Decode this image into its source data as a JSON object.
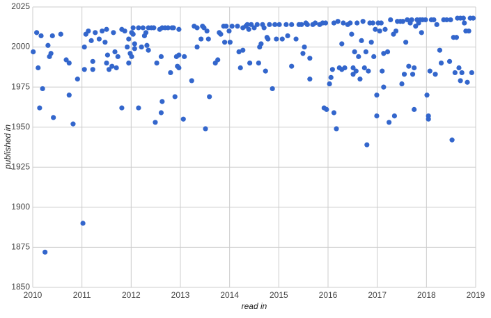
{
  "chart_data": {
    "type": "scatter",
    "x_label": "read in",
    "y_label": "published in",
    "color": "#3366cc",
    "grid": true,
    "xlim": [
      2010,
      2019
    ],
    "xticks": [
      2010,
      2011,
      2012,
      2013,
      2014,
      2015,
      2016,
      2017,
      2018,
      2019
    ],
    "ylim": [
      1850,
      2025
    ],
    "yticks": [
      1850,
      1875,
      1900,
      1925,
      1950,
      1975,
      2000,
      2025
    ],
    "x": [
      2010.01,
      2010.08,
      2010.11,
      2010.14,
      2010.17,
      2010.2,
      2010.25,
      2010.31,
      2010.34,
      2010.37,
      2010.4,
      2010.42,
      2010.57,
      2010.68,
      2010.74,
      2010.74,
      2010.82,
      2010.91,
      2011.02,
      2011.05,
      2011.05,
      2011.08,
      2011.13,
      2011.19,
      2011.22,
      2011.22,
      2011.27,
      2011.35,
      2011.41,
      2011.47,
      2011.5,
      2011.5,
      2011.52,
      2011.55,
      2011.61,
      2011.64,
      2011.67,
      2011.7,
      2011.73,
      2011.81,
      2011.81,
      2011.87,
      2011.92,
      2011.95,
      2011.95,
      2011.98,
      2012.01,
      2012.01,
      2012.04,
      2012.04,
      2012.07,
      2012.07,
      2012.15,
      2012.15,
      2012.21,
      2012.24,
      2012.27,
      2012.3,
      2012.32,
      2012.35,
      2012.35,
      2012.41,
      2012.46,
      2012.49,
      2012.52,
      2012.58,
      2012.61,
      2012.61,
      2012.63,
      2012.63,
      2012.69,
      2012.75,
      2012.8,
      2012.83,
      2012.86,
      2012.89,
      2012.92,
      2012.94,
      2012.97,
      2012.97,
      2012.97,
      2013.06,
      2013.08,
      2013.23,
      2013.28,
      2013.34,
      2013.34,
      2013.42,
      2013.45,
      2013.48,
      2013.51,
      2013.54,
      2013.57,
      2013.59,
      2013.71,
      2013.76,
      2013.79,
      2013.82,
      2013.88,
      2013.9,
      2013.93,
      2013.99,
      2014.01,
      2014.05,
      2014.16,
      2014.19,
      2014.22,
      2014.27,
      2014.27,
      2014.33,
      2014.36,
      2014.39,
      2014.41,
      2014.44,
      2014.5,
      2014.56,
      2014.59,
      2014.61,
      2014.64,
      2014.67,
      2014.7,
      2014.73,
      2014.76,
      2014.78,
      2014.81,
      2014.87,
      2014.92,
      2014.95,
      2015.01,
      2015.07,
      2015.15,
      2015.18,
      2015.26,
      2015.26,
      2015.35,
      2015.41,
      2015.46,
      2015.49,
      2015.52,
      2015.55,
      2015.58,
      2015.63,
      2015.63,
      2015.69,
      2015.74,
      2015.83,
      2015.89,
      2015.92,
      2015.95,
      2015.97,
      2016.03,
      2016.06,
      2016.09,
      2016.12,
      2016.12,
      2016.17,
      2016.2,
      2016.23,
      2016.28,
      2016.28,
      2016.31,
      2016.34,
      2016.4,
      2016.45,
      2016.48,
      2016.51,
      2016.51,
      2016.54,
      2016.57,
      2016.59,
      2016.62,
      2016.65,
      2016.68,
      2016.71,
      2016.74,
      2016.77,
      2016.79,
      2016.82,
      2016.85,
      2016.88,
      2016.91,
      2016.93,
      2016.96,
      2016.99,
      2016.99,
      2017.02,
      2017.05,
      2017.08,
      2017.1,
      2017.13,
      2017.13,
      2017.16,
      2017.21,
      2017.24,
      2017.27,
      2017.33,
      2017.35,
      2017.38,
      2017.41,
      2017.47,
      2017.5,
      2017.52,
      2017.55,
      2017.58,
      2017.61,
      2017.64,
      2017.67,
      2017.7,
      2017.72,
      2017.75,
      2017.75,
      2017.78,
      2017.81,
      2017.84,
      2017.87,
      2017.9,
      2017.92,
      2017.98,
      2018.01,
      2018.04,
      2018.04,
      2018.07,
      2018.1,
      2018.15,
      2018.18,
      2018.21,
      2018.27,
      2018.3,
      2018.35,
      2018.41,
      2018.47,
      2018.49,
      2018.52,
      2018.55,
      2018.58,
      2018.61,
      2018.63,
      2018.66,
      2018.69,
      2018.69,
      2018.72,
      2018.75,
      2018.77,
      2018.8,
      2018.83,
      2018.86,
      2018.89,
      2018.92,
      2018.95
    ],
    "values": [
      1997,
      2009,
      1987,
      1962,
      2007,
      1974,
      1872,
      2001,
      1994,
      1996,
      2007,
      1956,
      2008,
      1992,
      1970,
      1990,
      1952,
      1980,
      1890,
      2000,
      1986,
      2008,
      2010,
      2004,
      1986,
      1991,
      2009,
      2005,
      2010,
      2003,
      2011,
      1990,
      1995,
      1986,
      1988,
      2009,
      1997,
      1987,
      1994,
      2011,
      1962,
      2010,
      2000,
      1990,
      2005,
      1996,
      2009,
      1994,
      2008,
      2012,
      2002,
      1999,
      1962,
      2012,
      2000,
      2012,
      2007,
      2009,
      2001,
      1998,
      2012,
      2012,
      2012,
      1953,
      1990,
      2011,
      1959,
      1994,
      1966,
      2012,
      2012,
      2012,
      1984,
      2012,
      2012,
      1969,
      1994,
      1988,
      2011,
      1995,
      1987,
      1955,
      1994,
      1979,
      2013,
      2012,
      2000,
      2005,
      2013,
      2012,
      1949,
      2010,
      2005,
      1969,
      1990,
      1992,
      2009,
      2008,
      2013,
      2003,
      2013,
      2010,
      2003,
      2013,
      2013,
      1997,
      1987,
      1998,
      2012,
      2013,
      2014,
      2011,
      1990,
      2014,
      2012,
      2014,
      1990,
      2000,
      2002,
      2014,
      2012,
      1985,
      2006,
      2005,
      2014,
      1974,
      2014,
      2005,
      2014,
      2005,
      2014,
      2007,
      1988,
      2014,
      2005,
      2014,
      2014,
      1996,
      2000,
      2015,
      2014,
      1993,
      1980,
      2014,
      2015,
      2014,
      2015,
      1962,
      2015,
      1961,
      1977,
      1981,
      1986,
      2015,
      1959,
      1949,
      2016,
      1987,
      2002,
      1986,
      2015,
      1987,
      2014,
      2015,
      2008,
      1987,
      1983,
      1997,
      1985,
      2015,
      1994,
      1980,
      2004,
      2016,
      1987,
      1997,
      1939,
      1985,
      2015,
      2003,
      2015,
      1994,
      2011,
      1970,
      1957,
      2015,
      2010,
      2015,
      1985,
      1975,
      1996,
      2011,
      1997,
      1953,
      2017,
      2008,
      1957,
      2010,
      2016,
      2016,
      1977,
      2016,
      1983,
      2003,
      2017,
      1988,
      2015,
      2017,
      1983,
      1987,
      1961,
      2013,
      2017,
      2015,
      2017,
      2009,
      2017,
      2017,
      1970,
      1957,
      1955,
      1985,
      2017,
      2017,
      1983,
      2014,
      1998,
      1990,
      2017,
      2017,
      1991,
      2017,
      1942,
      2006,
      1984,
      2006,
      2018,
      1987,
      2018,
      1979,
      1984,
      2018,
      2015,
      2010,
      1978,
      2010,
      2018,
      1984,
      2018
    ]
  }
}
